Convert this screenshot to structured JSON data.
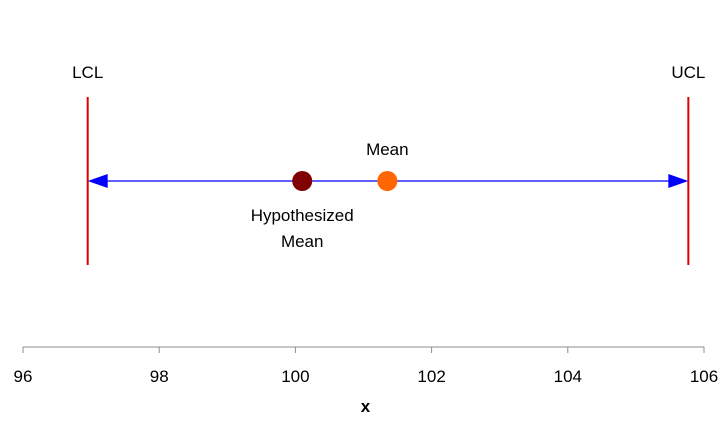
{
  "chart_data": {
    "type": "scatter",
    "title": "",
    "xlabel": "x",
    "ylabel": "",
    "xlim": [
      96,
      106
    ],
    "xticks": [
      96,
      98,
      100,
      102,
      104,
      106
    ],
    "grid": false,
    "limits": {
      "lcl": {
        "label": "LCL",
        "x": 96.95,
        "color": "#e00000"
      },
      "ucl": {
        "label": "UCL",
        "x": 105.77,
        "color": "#e00000"
      }
    },
    "interval_arrow": {
      "from": 96.95,
      "to": 105.77,
      "color": "#0000ff"
    },
    "points": [
      {
        "key": "hypothesized-mean",
        "label_lines": [
          "Hypothesized",
          "Mean"
        ],
        "x": 100.1,
        "color": "#800000",
        "label_position": "below"
      },
      {
        "key": "mean",
        "label_lines": [
          "Mean"
        ],
        "x": 101.35,
        "color": "#ff6600",
        "label_position": "above"
      }
    ],
    "axis_color": "#8c8c8c"
  }
}
